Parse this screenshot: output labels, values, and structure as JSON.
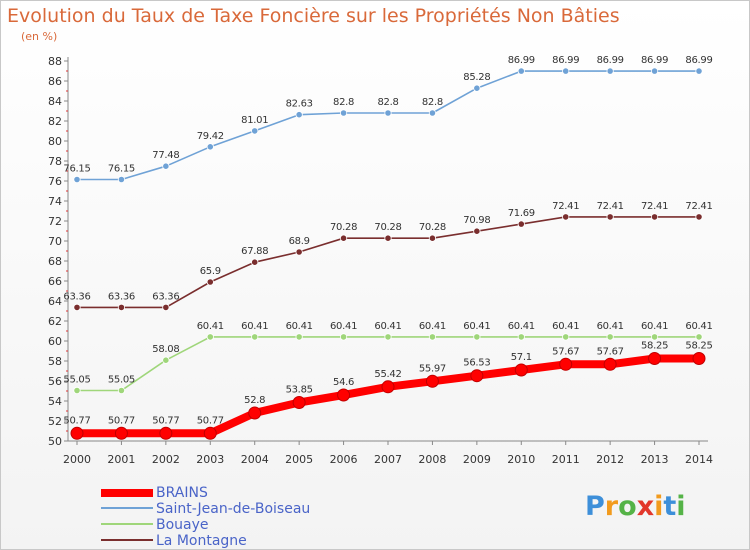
{
  "title": "Evolution du Taux de Taxe Foncière sur les Propriétés Non Bâties",
  "subtitle": "(en %)",
  "chart_data": {
    "type": "line",
    "x": [
      "2000",
      "2001",
      "2002",
      "2003",
      "2004",
      "2005",
      "2006",
      "2007",
      "2008",
      "2009",
      "2010",
      "2011",
      "2012",
      "2013",
      "2014"
    ],
    "ylim": [
      50,
      88
    ],
    "yticks": [
      50,
      52,
      54,
      56,
      58,
      60,
      62,
      64,
      66,
      68,
      70,
      72,
      74,
      76,
      78,
      80,
      82,
      84,
      86,
      88
    ],
    "grid": false,
    "legend_position": "bottom-left",
    "series": [
      {
        "name": "BRAINS",
        "color": "#ff0000",
        "values": [
          50.77,
          50.77,
          50.77,
          50.77,
          52.8,
          53.85,
          54.6,
          55.42,
          55.97,
          56.53,
          57.1,
          57.67,
          57.67,
          58.25,
          58.25
        ],
        "labels": [
          "50.77",
          "50.77",
          "50.77",
          "50.77",
          "52.8",
          "53.85",
          "54.6",
          "55.42",
          "55.97",
          "56.53",
          "57.1",
          "57.67",
          "57.67",
          "58.25",
          "58.25"
        ]
      },
      {
        "name": "Saint-Jean-de-Boiseau",
        "color": "#6fa2d6",
        "values": [
          76.15,
          76.15,
          77.48,
          79.42,
          81.01,
          82.63,
          82.8,
          82.8,
          82.8,
          85.28,
          86.99,
          86.99,
          86.99,
          86.99,
          86.99
        ],
        "labels": [
          "76.15",
          "76.15",
          "77.48",
          "79.42",
          "81.01",
          "82.63",
          "82.8",
          "82.8",
          "82.8",
          "85.28",
          "86.99",
          "86.99",
          "86.99",
          "86.99",
          "86.99"
        ]
      },
      {
        "name": "Bouaye",
        "color": "#9fd67a",
        "values": [
          55.05,
          55.05,
          58.08,
          60.41,
          60.41,
          60.41,
          60.41,
          60.41,
          60.41,
          60.41,
          60.41,
          60.41,
          60.41,
          60.41,
          60.41
        ],
        "labels": [
          "55.05",
          "55.05",
          "58.08",
          "60.41",
          "60.41",
          "60.41",
          "60.41",
          "60.41",
          "60.41",
          "60.41",
          "60.41",
          "60.41",
          "60.41",
          "60.41",
          "60.41"
        ]
      },
      {
        "name": "La Montagne",
        "color": "#7a2e2e",
        "values": [
          63.36,
          63.36,
          63.36,
          65.9,
          67.88,
          68.9,
          70.28,
          70.28,
          70.28,
          70.98,
          71.69,
          72.41,
          72.41,
          72.41,
          72.41
        ],
        "labels": [
          "63.36",
          "63.36",
          "63.36",
          "65.9",
          "67.88",
          "68.9",
          "70.28",
          "70.28",
          "70.28",
          "70.98",
          "71.69",
          "72.41",
          "72.41",
          "72.41",
          "72.41"
        ]
      }
    ]
  },
  "legend": [
    {
      "label": "BRAINS",
      "color": "#ff0000"
    },
    {
      "label": "Saint-Jean-de-Boiseau",
      "color": "#6fa2d6"
    },
    {
      "label": "Bouaye",
      "color": "#9fd67a"
    },
    {
      "label": "La Montagne",
      "color": "#7a2e2e"
    }
  ],
  "logo": {
    "letters": [
      "P",
      "r",
      "o",
      "x",
      "i",
      "t",
      "i"
    ],
    "colors": [
      "#3d8fd9",
      "#f29b1d",
      "#55b347",
      "#e2372b",
      "#f29b1d",
      "#3d8fd9",
      "#55b347"
    ]
  }
}
